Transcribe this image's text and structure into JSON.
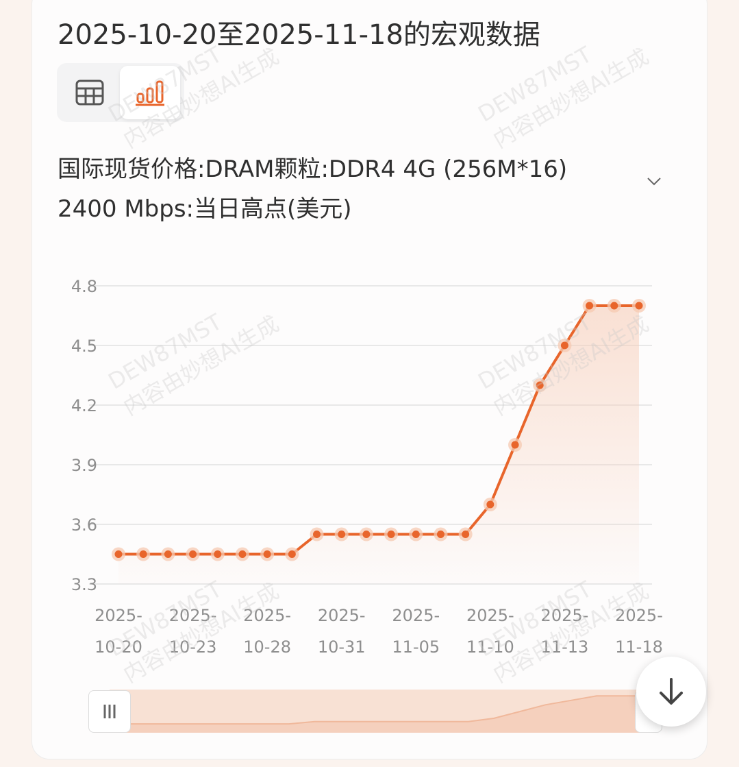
{
  "title": "2025-10-20至2025-11-18的宏观数据",
  "view_toggle": {
    "table_icon": "table-icon",
    "chart_icon": "bar-chart-icon",
    "active": "chart"
  },
  "series_selector": {
    "label": "国际现货价格:DRAM颗粒:DDR4 4G (256M*16) 2400 Mbps:当日高点(美元)",
    "icon": "chevron-down-icon"
  },
  "watermark": {
    "line1": "DEW87MST",
    "line2": "内容由妙想AI生成"
  },
  "scroll_button": {
    "icon": "arrow-down-icon"
  },
  "colors": {
    "accent": "#e8652b",
    "grid": "#e2e2e2",
    "fill": "#f6c9b2"
  },
  "chart_data": {
    "type": "line",
    "x": [
      "2025-10-20",
      "2025-10-21",
      "2025-10-22",
      "2025-10-23",
      "2025-10-24",
      "2025-10-27",
      "2025-10-28",
      "2025-10-29",
      "2025-10-30",
      "2025-10-31",
      "2025-11-03",
      "2025-11-04",
      "2025-11-05",
      "2025-11-06",
      "2025-11-07",
      "2025-11-10",
      "2025-11-11",
      "2025-11-12",
      "2025-11-13",
      "2025-11-14",
      "2025-11-17",
      "2025-11-18"
    ],
    "series": [
      {
        "values": [
          3.45,
          3.45,
          3.45,
          3.45,
          3.45,
          3.45,
          3.45,
          3.45,
          3.55,
          3.55,
          3.55,
          3.55,
          3.55,
          3.55,
          3.55,
          3.7,
          4.0,
          4.3,
          4.5,
          4.7,
          4.7,
          4.7
        ]
      }
    ],
    "xticks": [
      {
        "index": 0,
        "line1": "2025-",
        "line2": "10-20"
      },
      {
        "index": 3,
        "line1": "2025-",
        "line2": "10-23"
      },
      {
        "index": 6,
        "line1": "2025-",
        "line2": "10-28"
      },
      {
        "index": 9,
        "line1": "2025-",
        "line2": "10-31"
      },
      {
        "index": 12,
        "line1": "2025-",
        "line2": "11-05"
      },
      {
        "index": 15,
        "line1": "2025-",
        "line2": "11-10"
      },
      {
        "index": 18,
        "line1": "2025-",
        "line2": "11-13"
      },
      {
        "index": 21,
        "line1": "2025-",
        "line2": "11-18"
      }
    ],
    "yticks": [
      "3.3",
      "3.6",
      "3.9",
      "4.2",
      "4.5",
      "4.8"
    ],
    "ylim": [
      3.3,
      4.8
    ],
    "grid": true,
    "legend": "none",
    "area_fill": true,
    "data_zoom_slider": true
  }
}
